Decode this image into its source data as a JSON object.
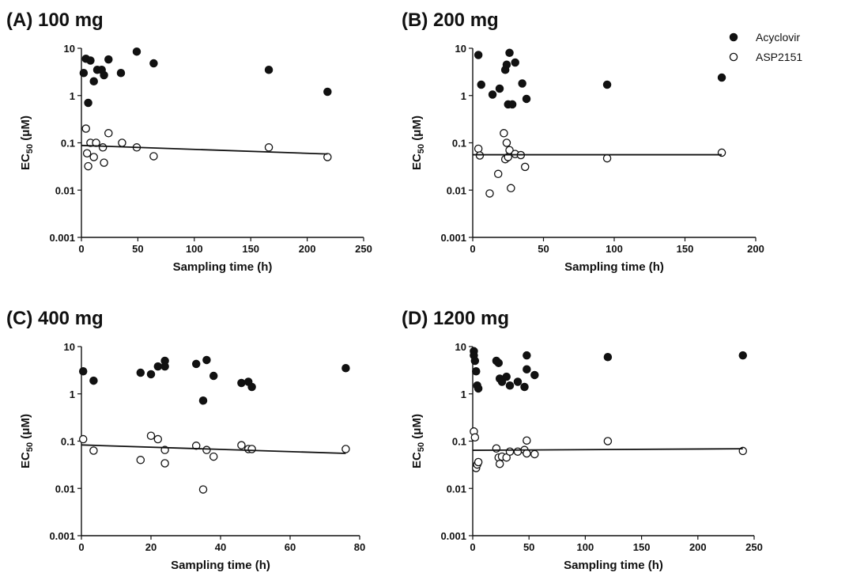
{
  "legend": {
    "entries": [
      {
        "label": "Acyclovir",
        "marker": "filled-circle",
        "color": "#111111"
      },
      {
        "label": "ASP2151",
        "marker": "open-circle",
        "color": "#111111"
      }
    ],
    "placement": "top-right"
  },
  "chart_data": [
    {
      "type": "scatter",
      "title": "(A) 100 mg",
      "xlabel": "Sampling time (h)",
      "ylabel": "EC50 (μM)",
      "xlim": [
        0,
        250
      ],
      "xticks": [
        0,
        50,
        100,
        150,
        200,
        250
      ],
      "ylim": [
        0.001,
        10
      ],
      "yscale": "log",
      "yticks": [
        0.001,
        0.01,
        0.1,
        1,
        10
      ],
      "ytick_labels": [
        "0.001",
        "0.01",
        "0.1",
        "1",
        "10"
      ],
      "grid": false,
      "series": [
        {
          "name": "Acyclovir",
          "marker": "filled",
          "x": [
            2,
            4,
            6,
            8,
            11,
            14,
            18,
            20,
            24,
            35,
            49,
            64,
            166,
            218
          ],
          "y": [
            3.0,
            6.0,
            0.7,
            5.5,
            2.0,
            3.5,
            3.5,
            2.7,
            5.8,
            3.0,
            8.5,
            4.8,
            3.5,
            1.2
          ]
        },
        {
          "name": "ASP2151",
          "marker": "open",
          "x": [
            4,
            5,
            6,
            8,
            11,
            13,
            19,
            20,
            24,
            36,
            49,
            64,
            166,
            218
          ],
          "y": [
            0.2,
            0.06,
            0.032,
            0.1,
            0.05,
            0.1,
            0.08,
            0.038,
            0.16,
            0.1,
            0.08,
            0.052,
            0.08,
            0.05
          ]
        },
        {
          "name": "ASP2151 fit",
          "type": "line",
          "x": [
            0,
            218
          ],
          "y": [
            0.088,
            0.058
          ]
        }
      ]
    },
    {
      "type": "scatter",
      "title": "(B) 200 mg",
      "xlabel": "Sampling time (h)",
      "ylabel": "EC50 (μM)",
      "xlim": [
        0,
        200
      ],
      "xticks": [
        0,
        50,
        100,
        150,
        200
      ],
      "ylim": [
        0.001,
        10
      ],
      "yscale": "log",
      "yticks": [
        0.001,
        0.01,
        0.1,
        1,
        10
      ],
      "ytick_labels": [
        "0.001",
        "0.01",
        "0.1",
        "1",
        "10"
      ],
      "grid": false,
      "series": [
        {
          "name": "Acyclovir",
          "marker": "filled",
          "x": [
            4,
            6,
            14,
            19,
            23,
            24,
            25,
            26,
            28,
            30,
            35,
            38,
            95,
            176
          ],
          "y": [
            7.2,
            1.7,
            1.05,
            1.4,
            3.5,
            4.5,
            0.65,
            8.0,
            0.65,
            5.0,
            1.8,
            0.85,
            1.7,
            2.4
          ]
        },
        {
          "name": "ASP2151",
          "marker": "open",
          "x": [
            4,
            5,
            12,
            18,
            22,
            23,
            24,
            25,
            26,
            27,
            30,
            34,
            37,
            95,
            176
          ],
          "y": [
            0.075,
            0.054,
            0.0085,
            0.022,
            0.16,
            0.045,
            0.1,
            0.05,
            0.07,
            0.011,
            0.058,
            0.055,
            0.031,
            0.047,
            0.062
          ]
        },
        {
          "name": "ASP2151 fit",
          "type": "line",
          "x": [
            0,
            176
          ],
          "y": [
            0.056,
            0.056
          ]
        }
      ]
    },
    {
      "type": "scatter",
      "title": "(C) 400 mg",
      "xlabel": "Sampling time (h)",
      "ylabel": "EC50 (μM)",
      "xlim": [
        0,
        80
      ],
      "xticks": [
        0,
        20,
        40,
        60,
        80
      ],
      "ylim": [
        0.001,
        10
      ],
      "yscale": "log",
      "yticks": [
        0.001,
        0.01,
        0.1,
        1,
        10
      ],
      "ytick_labels": [
        "0.001",
        "0.01",
        "0.1",
        "1",
        "10"
      ],
      "grid": false,
      "series": [
        {
          "name": "Acyclovir",
          "marker": "filled",
          "x": [
            0.5,
            3.5,
            17,
            20,
            22,
            24,
            24,
            33,
            35,
            36,
            38,
            46,
            48,
            49,
            76
          ],
          "y": [
            3.0,
            1.9,
            2.8,
            2.6,
            3.8,
            5.0,
            3.8,
            4.3,
            0.72,
            5.2,
            2.4,
            1.7,
            1.8,
            1.4,
            3.5
          ]
        },
        {
          "name": "ASP2151",
          "marker": "open",
          "x": [
            0.5,
            3.5,
            17,
            20,
            22,
            24,
            24,
            33,
            35,
            36,
            38,
            46,
            48,
            49,
            76
          ],
          "y": [
            0.11,
            0.063,
            0.04,
            0.13,
            0.11,
            0.065,
            0.034,
            0.08,
            0.0095,
            0.065,
            0.047,
            0.082,
            0.068,
            0.068,
            0.068
          ]
        },
        {
          "name": "ASP2151 fit",
          "type": "line",
          "x": [
            0,
            76
          ],
          "y": [
            0.083,
            0.055
          ]
        }
      ]
    },
    {
      "type": "scatter",
      "title": "(D) 1200 mg",
      "xlabel": "Sampling time (h)",
      "ylabel": "EC50 (μM)",
      "xlim": [
        0,
        250
      ],
      "xticks": [
        0,
        50,
        100,
        150,
        200,
        250
      ],
      "ylim": [
        0.001,
        10
      ],
      "yscale": "log",
      "yticks": [
        0.001,
        0.01,
        0.1,
        1,
        10
      ],
      "ytick_labels": [
        "0.001",
        "0.01",
        "0.1",
        "1",
        "10"
      ],
      "grid": false,
      "series": [
        {
          "name": "Acyclovir",
          "marker": "filled",
          "x": [
            1,
            1,
            2,
            3,
            4,
            5,
            21,
            23,
            24,
            26,
            30,
            33,
            40,
            46,
            48,
            48,
            55,
            120,
            240
          ],
          "y": [
            8.0,
            6.5,
            5.0,
            3.0,
            1.5,
            1.3,
            5.0,
            4.5,
            2.1,
            1.8,
            2.3,
            1.5,
            1.8,
            1.4,
            6.5,
            3.3,
            2.5,
            6.0,
            6.5
          ]
        },
        {
          "name": "ASP2151",
          "marker": "open",
          "x": [
            1,
            2,
            3,
            4,
            5,
            21,
            23,
            24,
            26,
            30,
            33,
            40,
            46,
            48,
            48,
            55,
            120,
            240
          ],
          "y": [
            0.16,
            0.12,
            0.027,
            0.032,
            0.036,
            0.07,
            0.045,
            0.033,
            0.047,
            0.045,
            0.06,
            0.06,
            0.065,
            0.103,
            0.055,
            0.053,
            0.1,
            0.062
          ]
        },
        {
          "name": "ASP2151 fit",
          "type": "line",
          "x": [
            0,
            240
          ],
          "y": [
            0.064,
            0.069
          ]
        }
      ]
    }
  ]
}
